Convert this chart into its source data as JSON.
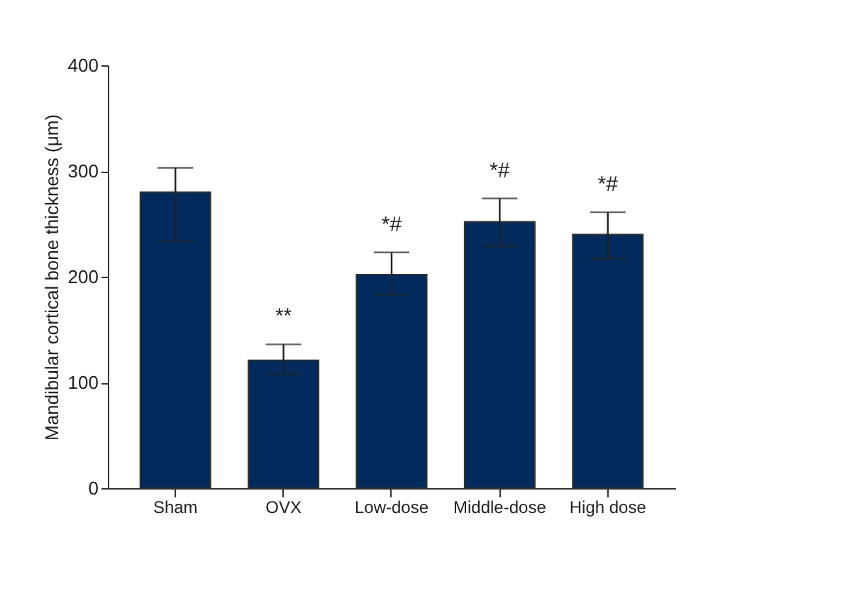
{
  "chart_data": {
    "type": "bar",
    "ylabel": "Mandibular cortical bone thickness (μm)",
    "categories": [
      "Sham",
      "OVX",
      "Low-dose",
      "Middle-dose",
      "High dose"
    ],
    "values": [
      280,
      121,
      202,
      252,
      240
    ],
    "errors": [
      [
        234,
        303
      ],
      [
        108,
        136
      ],
      [
        183,
        223
      ],
      [
        229,
        274
      ],
      [
        217,
        261
      ]
    ],
    "color": "#022a5c",
    "ylim": [
      0,
      400
    ],
    "yticks": [
      0,
      100,
      200,
      300,
      400
    ],
    "grid": false,
    "annotations": [
      {
        "text": "**",
        "x": "OVX",
        "y": 136
      },
      {
        "text": "*#",
        "x": "Low-dose",
        "y": 223
      },
      {
        "text": "*#",
        "x": "Middle-dose",
        "y": 274
      },
      {
        "text": "*#",
        "x": "High dose",
        "y": 261
      }
    ]
  }
}
